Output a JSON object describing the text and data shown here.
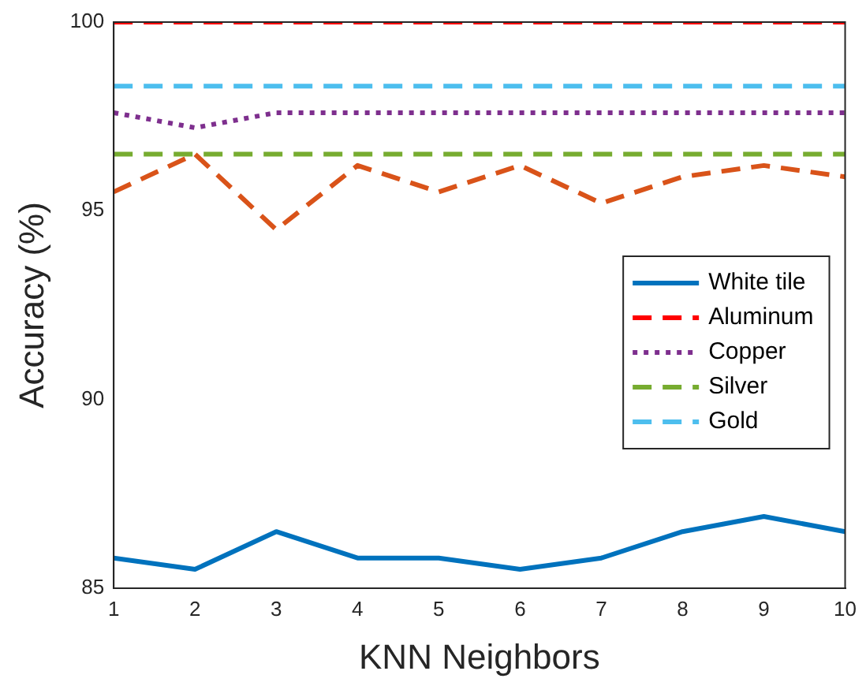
{
  "chart_data": {
    "type": "line",
    "xlabel": "KNN Neighbors",
    "ylabel": "Accuracy (%)",
    "x": [
      1,
      2,
      3,
      4,
      5,
      6,
      7,
      8,
      9,
      10
    ],
    "xlim": [
      1,
      10
    ],
    "xticks": [
      1,
      2,
      3,
      4,
      5,
      6,
      7,
      8,
      9,
      10
    ],
    "ylim": [
      85,
      100
    ],
    "yticks": [
      85,
      90,
      95,
      100
    ],
    "grid": false,
    "legend": "right",
    "marker": "none",
    "series": [
      {
        "name": "White tile",
        "color": "#0072bd",
        "line_style": "solid",
        "values": [
          85.8,
          85.5,
          86.5,
          85.8,
          85.8,
          85.5,
          85.8,
          86.5,
          86.9,
          86.5
        ]
      },
      {
        "color": "#d95319",
        "line_style": "dashed",
        "values": [
          95.5,
          96.5,
          94.5,
          96.2,
          95.5,
          96.2,
          95.2,
          95.9,
          96.2,
          95.9
        ]
      },
      {
        "name": "Aluminum",
        "color": "#ff0000",
        "line_style": "dashed",
        "values": [
          100,
          100,
          100,
          100,
          100,
          100,
          100,
          100,
          100,
          100
        ]
      },
      {
        "name": "Copper",
        "color": "#7e2f8e",
        "line_style": "dotted",
        "values": [
          97.6,
          97.2,
          97.6,
          97.6,
          97.6,
          97.6,
          97.6,
          97.6,
          97.6,
          97.6
        ]
      },
      {
        "name": "Silver",
        "color": "#77ac30",
        "line_style": "dashed",
        "values": [
          96.5,
          96.5,
          96.5,
          96.5,
          96.5,
          96.5,
          96.5,
          96.5,
          96.5,
          96.5
        ]
      },
      {
        "name": "Gold",
        "color": "#4dbeee",
        "line_style": "dashed",
        "values": [
          98.3,
          98.3,
          98.3,
          98.3,
          98.3,
          98.3,
          98.3,
          98.3,
          98.3,
          98.3
        ]
      }
    ]
  }
}
